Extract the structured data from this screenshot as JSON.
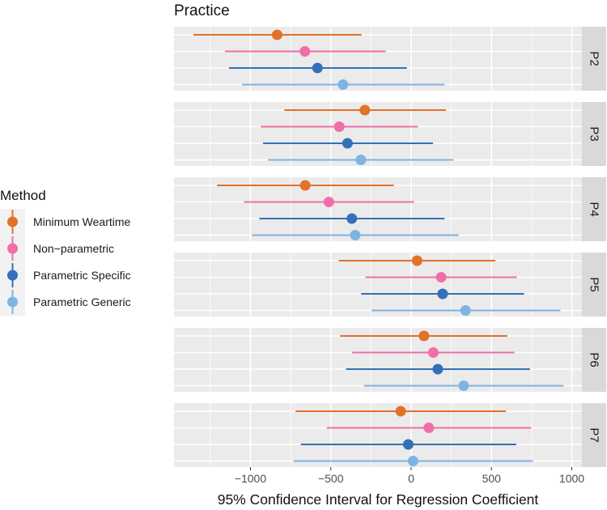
{
  "chart_data": {
    "type": "forest",
    "title": "Practice",
    "xlabel": "95% Confidence Interval for Regression Coefficient",
    "xlim": [
      -1476,
      1063
    ],
    "xticks": [
      -1000,
      -500,
      0,
      500,
      1000
    ],
    "xtick_labels": [
      "−1000",
      "−500",
      "0",
      "500",
      "1000"
    ],
    "minor_grid": [
      -1250,
      -750,
      -250,
      250,
      750
    ],
    "grid": true,
    "legend": {
      "title": "Method",
      "placement": "left",
      "entries": [
        "Minimum Weartime",
        "Non−parametric",
        "Parametric Specific",
        "Parametric Generic"
      ]
    },
    "colors": [
      "#E2712A",
      "#F06EA9",
      "#3470B9",
      "#7FB3E2"
    ],
    "panels": [
      {
        "label": "P2",
        "series": [
          {
            "method": "Minimum Weartime",
            "estimate": -834,
            "lower": -1355,
            "upper": -309
          },
          {
            "method": "Non−parametric",
            "estimate": -661,
            "lower": -1159,
            "upper": -159
          },
          {
            "method": "Parametric Specific",
            "estimate": -583,
            "lower": -1134,
            "upper": -27
          },
          {
            "method": "Parametric Generic",
            "estimate": -424,
            "lower": -1053,
            "upper": 208
          }
        ]
      },
      {
        "label": "P3",
        "series": [
          {
            "method": "Minimum Weartime",
            "estimate": -288,
            "lower": -790,
            "upper": 217
          },
          {
            "method": "Non−parametric",
            "estimate": -447,
            "lower": -935,
            "upper": 42
          },
          {
            "method": "Parametric Specific",
            "estimate": -396,
            "lower": -922,
            "upper": 136
          },
          {
            "method": "Parametric Generic",
            "estimate": -313,
            "lower": -890,
            "upper": 263
          }
        ]
      },
      {
        "label": "P4",
        "series": [
          {
            "method": "Minimum Weartime",
            "estimate": -659,
            "lower": -1208,
            "upper": -108
          },
          {
            "method": "Non−parametric",
            "estimate": -512,
            "lower": -1041,
            "upper": 18
          },
          {
            "method": "Parametric Specific",
            "estimate": -369,
            "lower": -945,
            "upper": 208
          },
          {
            "method": "Parametric Generic",
            "estimate": -348,
            "lower": -991,
            "upper": 295
          }
        ]
      },
      {
        "label": "P5",
        "series": [
          {
            "method": "Minimum Weartime",
            "estimate": 37,
            "lower": -451,
            "upper": 525
          },
          {
            "method": "Non−parametric",
            "estimate": 187,
            "lower": -284,
            "upper": 657
          },
          {
            "method": "Parametric Specific",
            "estimate": 196,
            "lower": -311,
            "upper": 703
          },
          {
            "method": "Parametric Generic",
            "estimate": 339,
            "lower": -247,
            "upper": 929
          }
        ]
      },
      {
        "label": "P6",
        "series": [
          {
            "method": "Minimum Weartime",
            "estimate": 80,
            "lower": -442,
            "upper": 599
          },
          {
            "method": "Non−parametric",
            "estimate": 138,
            "lower": -367,
            "upper": 643
          },
          {
            "method": "Parametric Specific",
            "estimate": 166,
            "lower": -405,
            "upper": 739
          },
          {
            "method": "Parametric Generic",
            "estimate": 327,
            "lower": -293,
            "upper": 949
          }
        ]
      },
      {
        "label": "P7",
        "series": [
          {
            "method": "Minimum Weartime",
            "estimate": -65,
            "lower": -719,
            "upper": 590
          },
          {
            "method": "Non−parametric",
            "estimate": 110,
            "lower": -525,
            "upper": 747
          },
          {
            "method": "Parametric Specific",
            "estimate": -18,
            "lower": -687,
            "upper": 654
          },
          {
            "method": "Parametric Generic",
            "estimate": 12,
            "lower": -731,
            "upper": 758
          }
        ]
      }
    ]
  }
}
